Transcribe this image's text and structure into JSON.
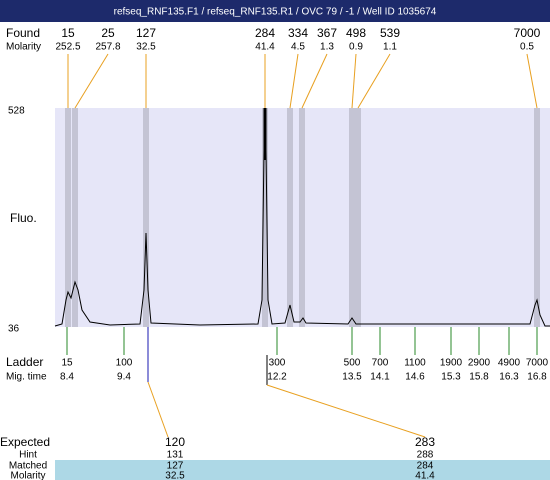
{
  "title": "refseq_RNF135.F1 / refseq_RNF135.R1 / OVC 79 / -1 / Well ID 1035674",
  "found": {
    "label": "Found",
    "molarity_label": "Molarity",
    "peaks": [
      {
        "size": 15,
        "molarity": 252.5
      },
      {
        "size": 25,
        "molarity": 257.8
      },
      {
        "size": 127,
        "molarity": 32.5
      },
      {
        "size": 284,
        "molarity": 41.4
      },
      {
        "size": 334,
        "molarity": 4.5
      },
      {
        "size": 367,
        "molarity": 1.3
      },
      {
        "size": 498,
        "molarity": 0.9
      },
      {
        "size": 539,
        "molarity": 1.1
      },
      {
        "size": 7000,
        "molarity": 0.5
      }
    ]
  },
  "y_axis": {
    "label": "Fluo.",
    "top": 528,
    "bottom": 36
  },
  "ladder": {
    "label": "Ladder",
    "time_label": "Mig. time",
    "marks": [
      {
        "size": 15,
        "time": 8.4
      },
      {
        "size": 100,
        "time": 9.4
      },
      {
        "size": 300,
        "time": 12.2
      },
      {
        "size": 500,
        "time": 13.5
      },
      {
        "size": 700,
        "time": 14.1
      },
      {
        "size": 1100,
        "time": 14.6
      },
      {
        "size": 1900,
        "time": 15.3
      },
      {
        "size": 2900,
        "time": 15.8
      },
      {
        "size": 4900,
        "time": 16.3
      },
      {
        "size": 7000,
        "time": 16.8
      }
    ]
  },
  "expected": {
    "label": "Expected",
    "hint_label": "Hint",
    "matched_label": "Matched",
    "molarity_label": "Molarity",
    "columns": [
      {
        "expected": 120,
        "hint": 131,
        "matched": 127,
        "molarity": 32.5
      },
      {
        "expected": 283,
        "hint": 288,
        "matched": 284,
        "molarity": 41.4
      }
    ]
  }
}
